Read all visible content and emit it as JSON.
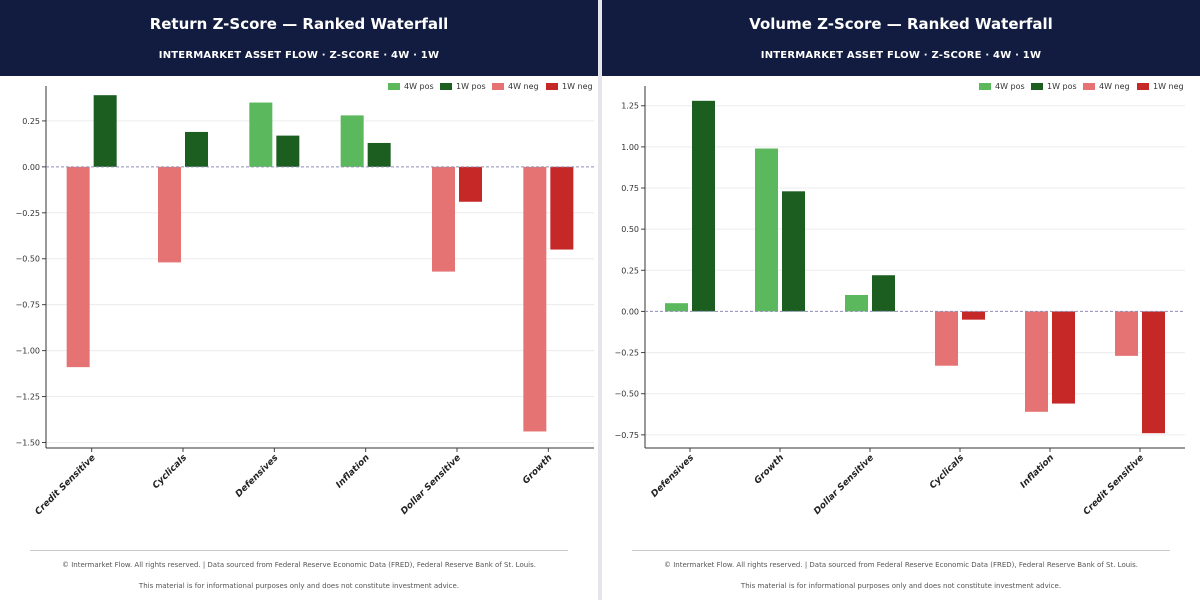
{
  "colors": {
    "header_bg": "#121c40",
    "pos_4w": "#5cb85c",
    "pos_1w": "#1b5e20",
    "neg_4w": "#e57373",
    "neg_1w": "#c62828",
    "zero_line": "#8e8eb8"
  },
  "footer": {
    "line1": "© Intermarket Flow. All rights reserved.  |  Data sourced from Federal Reserve Economic Data (FRED), Federal Reserve Bank of St. Louis.",
    "line2": "This material is for informational purposes only and does not constitute investment advice."
  },
  "chart_data": [
    {
      "type": "bar",
      "title": "Return Z-Score — Ranked Waterfall",
      "subtitle": "INTERMARKET ASSET FLOW  ·  Z-SCORE  ·  4W · 1W",
      "categories": [
        "Credit Sensitive",
        "Cyclicals",
        "Defensives",
        "Inflation",
        "Dollar Sensitive",
        "Growth"
      ],
      "series": [
        {
          "name": "4W",
          "values": [
            -1.09,
            -0.52,
            0.35,
            0.28,
            -0.57,
            -1.44
          ]
        },
        {
          "name": "1W",
          "values": [
            0.39,
            0.19,
            0.17,
            0.13,
            -0.19,
            -0.45
          ]
        }
      ],
      "legend": [
        "4W pos",
        "1W pos",
        "4W neg",
        "1W neg"
      ],
      "legend_position": "top-right",
      "ylim": [
        -1.53,
        0.44
      ],
      "yticks": [
        0.25,
        0.0,
        -0.25,
        -0.5,
        -0.75,
        -1.0,
        -1.25,
        -1.5
      ],
      "ytick_labels": [
        "0.25",
        "0.00",
        "−0.25",
        "−0.50",
        "−0.75",
        "−1.00",
        "−1.25",
        "−1.50"
      ],
      "grid": true
    },
    {
      "type": "bar",
      "title": "Volume Z-Score — Ranked Waterfall",
      "subtitle": "INTERMARKET ASSET FLOW  ·  Z-SCORE  ·  4W · 1W",
      "categories": [
        "Defensives",
        "Growth",
        "Dollar Sensitive",
        "Cyclicals",
        "Inflation",
        "Credit Sensitive"
      ],
      "series": [
        {
          "name": "4W",
          "values": [
            0.05,
            0.99,
            0.1,
            -0.33,
            -0.61,
            -0.27
          ]
        },
        {
          "name": "1W",
          "values": [
            1.28,
            0.73,
            0.22,
            -0.05,
            -0.56,
            -0.74
          ]
        }
      ],
      "legend": [
        "4W pos",
        "1W pos",
        "4W neg",
        "1W neg"
      ],
      "legend_position": "top-right",
      "ylim": [
        -0.83,
        1.37
      ],
      "yticks": [
        1.25,
        1.0,
        0.75,
        0.5,
        0.25,
        0.0,
        -0.25,
        -0.5,
        -0.75
      ],
      "ytick_labels": [
        "1.25",
        "1.00",
        "0.75",
        "0.50",
        "0.25",
        "0.00",
        "−0.25",
        "−0.50",
        "−0.75"
      ],
      "grid": true
    }
  ]
}
